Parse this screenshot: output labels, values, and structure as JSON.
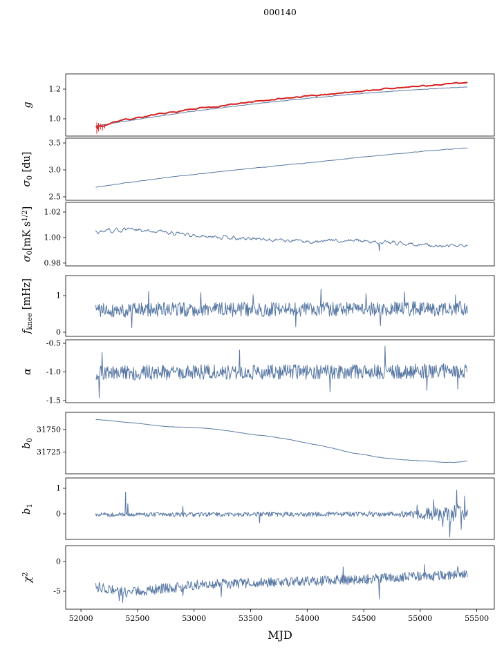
{
  "title": "000140",
  "colors": {
    "line_blue": "#5878a4",
    "line_red": "#d62020",
    "axis": "#000000"
  },
  "chart_data": {
    "type": "line",
    "title": "000140",
    "x_axis": {
      "label": "MJD",
      "range": [
        51865,
        55655
      ],
      "ticks": [
        52000,
        52500,
        53000,
        53500,
        54000,
        54500,
        55000,
        55500
      ]
    },
    "panels": [
      {
        "name": "g",
        "ylabel_parts": [
          {
            "text": "g",
            "italic": true
          }
        ],
        "ylim": [
          0.884,
          1.302
        ],
        "yticks": [
          {
            "v": 1.0,
            "label": "1.0"
          },
          {
            "v": 1.2,
            "label": "1.2"
          }
        ],
        "series": [
          {
            "name": "gain-smoothed",
            "color": "#5878a4",
            "width": 1,
            "seed": 11,
            "n": 600,
            "x_range": [
              52131,
              55418
            ],
            "noise": 0.0015,
            "smooth": 1,
            "anchors": [
              [
                52131,
                0.952
              ],
              [
                52300,
                0.973
              ],
              [
                52600,
                1.008
              ],
              [
                53000,
                1.052
              ],
              [
                53500,
                1.098
              ],
              [
                54000,
                1.138
              ],
              [
                54500,
                1.172
              ],
              [
                55000,
                1.198
              ],
              [
                55418,
                1.215
              ]
            ]
          },
          {
            "name": "gain",
            "color": "#d62020",
            "width": 2,
            "seed": 7,
            "n": 420,
            "x_range": [
              52131,
              55418
            ],
            "noise": 0.004,
            "smooth": 2,
            "anchors": [
              [
                52131,
                0.948
              ],
              [
                52200,
                0.952
              ],
              [
                52300,
                0.982
              ],
              [
                52600,
                1.02
              ],
              [
                53000,
                1.065
              ],
              [
                53500,
                1.112
              ],
              [
                54000,
                1.152
              ],
              [
                54500,
                1.188
              ],
              [
                55000,
                1.22
              ],
              [
                55418,
                1.243
              ]
            ],
            "vlines": [
              [
                52140,
                0.9,
                0.975
              ],
              [
                52155,
                0.915,
                0.972
              ],
              [
                52172,
                0.928,
                0.968
              ],
              [
                52190,
                0.922,
                0.962
              ],
              [
                52210,
                0.935,
                0.963
              ]
            ],
            "spikes": [
              [
                52145,
                0.935
              ]
            ]
          }
        ]
      },
      {
        "name": "sigma0_du",
        "ylabel_parts": [
          {
            "text": "σ",
            "italic": true
          },
          {
            "text": "0",
            "sub": true
          },
          {
            "text": " [du]"
          }
        ],
        "ylim": [
          2.436,
          3.59
        ],
        "yticks": [
          {
            "v": 2.5,
            "label": "2.5"
          },
          {
            "v": 3.0,
            "label": "3.0"
          },
          {
            "v": 3.5,
            "label": "3.5"
          }
        ],
        "series": [
          {
            "name": "sigma0-du",
            "color": "#5878a4",
            "width": 1,
            "seed": 21,
            "n": 520,
            "x_range": [
              52131,
              55418
            ],
            "noise": 0.004,
            "smooth": 2,
            "anchors": [
              [
                52131,
                2.68
              ],
              [
                52400,
                2.76
              ],
              [
                52800,
                2.87
              ],
              [
                53200,
                2.96
              ],
              [
                53600,
                3.05
              ],
              [
                54000,
                3.13
              ],
              [
                54400,
                3.22
              ],
              [
                54800,
                3.3
              ],
              [
                55100,
                3.36
              ],
              [
                55418,
                3.41
              ]
            ]
          }
        ]
      },
      {
        "name": "sigma0_mk",
        "ylabel_parts": [
          {
            "text": "σ",
            "italic": true
          },
          {
            "text": "0",
            "sub": true
          },
          {
            "text": "[mK s"
          },
          {
            "text": "1/2",
            "sup": true
          },
          {
            "text": "]"
          }
        ],
        "ylim": [
          0.9778,
          1.0276
        ],
        "yticks": [
          {
            "v": 0.98,
            "label": "0.98"
          },
          {
            "v": 1.0,
            "label": "1.00"
          },
          {
            "v": 1.02,
            "label": "1.02"
          }
        ],
        "series": [
          {
            "name": "sigma0-mk",
            "color": "#5878a4",
            "width": 1,
            "seed": 31,
            "n": 650,
            "x_range": [
              52131,
              55418
            ],
            "noise": 0.0015,
            "smooth": 2,
            "anchors": [
              [
                52131,
                1.004
              ],
              [
                52400,
                1.006
              ],
              [
                52700,
                1.005
              ],
              [
                53000,
                1.002
              ],
              [
                53300,
                1.0
              ],
              [
                53600,
                0.999
              ],
              [
                54000,
                0.997
              ],
              [
                54400,
                0.998
              ],
              [
                54700,
                0.996
              ],
              [
                55000,
                0.994
              ],
              [
                55200,
                0.9935
              ],
              [
                55418,
                0.9935
              ]
            ],
            "spikes": [
              [
                54640,
                0.9895
              ]
            ]
          }
        ]
      },
      {
        "name": "f_knee",
        "ylabel_parts": [
          {
            "text": "f",
            "italic": true
          },
          {
            "text": "knee",
            "sub": true
          },
          {
            "text": " [mHz]"
          }
        ],
        "ylim": [
          -0.113,
          1.547
        ],
        "yticks": [
          {
            "v": 0,
            "label": "0"
          },
          {
            "v": 1,
            "label": "1"
          }
        ],
        "series": [
          {
            "name": "fknee",
            "color": "#5878a4",
            "width": 1,
            "seed": 41,
            "n": 620,
            "x_range": [
              52131,
              55418
            ],
            "noise": 0.2,
            "smooth": 0,
            "anchors": [
              [
                52131,
                0.6
              ],
              [
                53000,
                0.63
              ],
              [
                54000,
                0.62
              ],
              [
                55418,
                0.65
              ]
            ],
            "spikes": [
              [
                52600,
                1.12
              ],
              [
                53060,
                1.08
              ],
              [
                53520,
                1.02
              ],
              [
                54120,
                1.18
              ],
              [
                54520,
                1.05
              ],
              [
                54860,
                1.1
              ],
              [
                55310,
                1.02
              ],
              [
                52450,
                0.12
              ],
              [
                53900,
                0.15
              ],
              [
                54650,
                0.18
              ]
            ]
          }
        ]
      },
      {
        "name": "alpha",
        "ylabel_parts": [
          {
            "text": "α",
            "italic": true
          }
        ],
        "ylim": [
          -1.536,
          -0.44
        ],
        "yticks": [
          {
            "v": -1.5,
            "label": "-1.5"
          },
          {
            "v": -1.0,
            "label": "-1.0"
          },
          {
            "v": -0.5,
            "label": "-0.5"
          }
        ],
        "series": [
          {
            "name": "alpha",
            "color": "#5878a4",
            "width": 1,
            "seed": 51,
            "n": 650,
            "x_range": [
              52131,
              55418
            ],
            "noise": 0.13,
            "smooth": 0,
            "anchors": [
              [
                52131,
                -1.02
              ],
              [
                53000,
                -1.0
              ],
              [
                54500,
                -1.0
              ],
              [
                55418,
                -0.98
              ]
            ],
            "spikes": [
              [
                52160,
                -1.45
              ],
              [
                52185,
                -0.66
              ],
              [
                53400,
                -0.62
              ],
              [
                54200,
                -1.35
              ],
              [
                54690,
                -0.55
              ],
              [
                55060,
                -1.32
              ],
              [
                55330,
                -1.3
              ]
            ]
          }
        ]
      },
      {
        "name": "b0",
        "ylabel_parts": [
          {
            "text": "b",
            "italic": true
          },
          {
            "text": "0",
            "sub": true
          }
        ],
        "ylim": [
          31701,
          31769
        ],
        "yticks": [
          {
            "v": 31725,
            "label": "31725"
          },
          {
            "v": 31750,
            "label": "31750"
          }
        ],
        "series": [
          {
            "name": "b0",
            "color": "#5878a4",
            "width": 1,
            "seed": 61,
            "n": 520,
            "x_range": [
              52131,
              55418
            ],
            "noise": 0.35,
            "smooth": 8,
            "anchors": [
              [
                52131,
                31761
              ],
              [
                52400,
                31758
              ],
              [
                52700,
                31754
              ],
              [
                53000,
                31752
              ],
              [
                53200,
                31750
              ],
              [
                53500,
                31745
              ],
              [
                53800,
                31740
              ],
              [
                54000,
                31735
              ],
              [
                54200,
                31730
              ],
              [
                54400,
                31724
              ],
              [
                54600,
                31720
              ],
              [
                54800,
                31717
              ],
              [
                55000,
                31715.5
              ],
              [
                55150,
                31714
              ],
              [
                55300,
                31713.5
              ],
              [
                55418,
                31715
              ]
            ]
          }
        ]
      },
      {
        "name": "b1",
        "ylabel_parts": [
          {
            "text": "b",
            "italic": true
          },
          {
            "text": "1",
            "sub": true
          }
        ],
        "ylim": [
          -1.0,
          1.405
        ],
        "yticks": [
          {
            "v": 0,
            "label": "0"
          },
          {
            "v": 1,
            "label": "1"
          }
        ],
        "series": [
          {
            "name": "b1",
            "color": "#5878a4",
            "width": 1,
            "seed": 71,
            "n": 650,
            "x_range": [
              52131,
              55418
            ],
            "noise_anchors": [
              [
                52131,
                0.085
              ],
              [
                54800,
                0.1
              ],
              [
                55150,
                0.28
              ],
              [
                55418,
                0.45
              ]
            ],
            "smooth": 0,
            "anchors": [
              [
                52131,
                -0.03
              ],
              [
                55418,
                0.0
              ]
            ],
            "spikes": [
              [
                52395,
                0.85
              ],
              [
                52415,
                0.4
              ],
              [
                52900,
                0.3
              ],
              [
                53580,
                -0.35
              ],
              [
                54970,
                0.35
              ],
              [
                55120,
                0.55
              ],
              [
                55200,
                -0.5
              ],
              [
                55260,
                -0.9
              ],
              [
                55320,
                0.92
              ],
              [
                55360,
                -0.6
              ],
              [
                55395,
                0.7
              ]
            ]
          }
        ]
      },
      {
        "name": "chi2",
        "ylabel_parts": [
          {
            "text": "χ",
            "italic": true
          },
          {
            "text": "2",
            "sup": true
          }
        ],
        "ylim": [
          -8.02,
          2.67
        ],
        "yticks": [
          {
            "v": -5,
            "label": "-5"
          },
          {
            "v": 0,
            "label": "0"
          }
        ],
        "series": [
          {
            "name": "chi2",
            "color": "#5878a4",
            "width": 1,
            "seed": 81,
            "n": 650,
            "x_range": [
              52131,
              55418
            ],
            "noise": 0.85,
            "smooth": 0,
            "anchors": [
              [
                52131,
                -4.2
              ],
              [
                52400,
                -5.2
              ],
              [
                52700,
                -4.6
              ],
              [
                53000,
                -4.0
              ],
              [
                53500,
                -3.6
              ],
              [
                54000,
                -3.3
              ],
              [
                54500,
                -3.0
              ],
              [
                55000,
                -2.5
              ],
              [
                55418,
                -2.2
              ]
            ],
            "spikes": [
              [
                52340,
                -6.6
              ],
              [
                52370,
                -6.9
              ],
              [
                52900,
                -5.8
              ],
              [
                53240,
                -5.9
              ],
              [
                54320,
                -0.9
              ],
              [
                54640,
                -6.3
              ],
              [
                55040,
                -0.5
              ],
              [
                55330,
                -0.8
              ]
            ]
          }
        ]
      }
    ]
  }
}
